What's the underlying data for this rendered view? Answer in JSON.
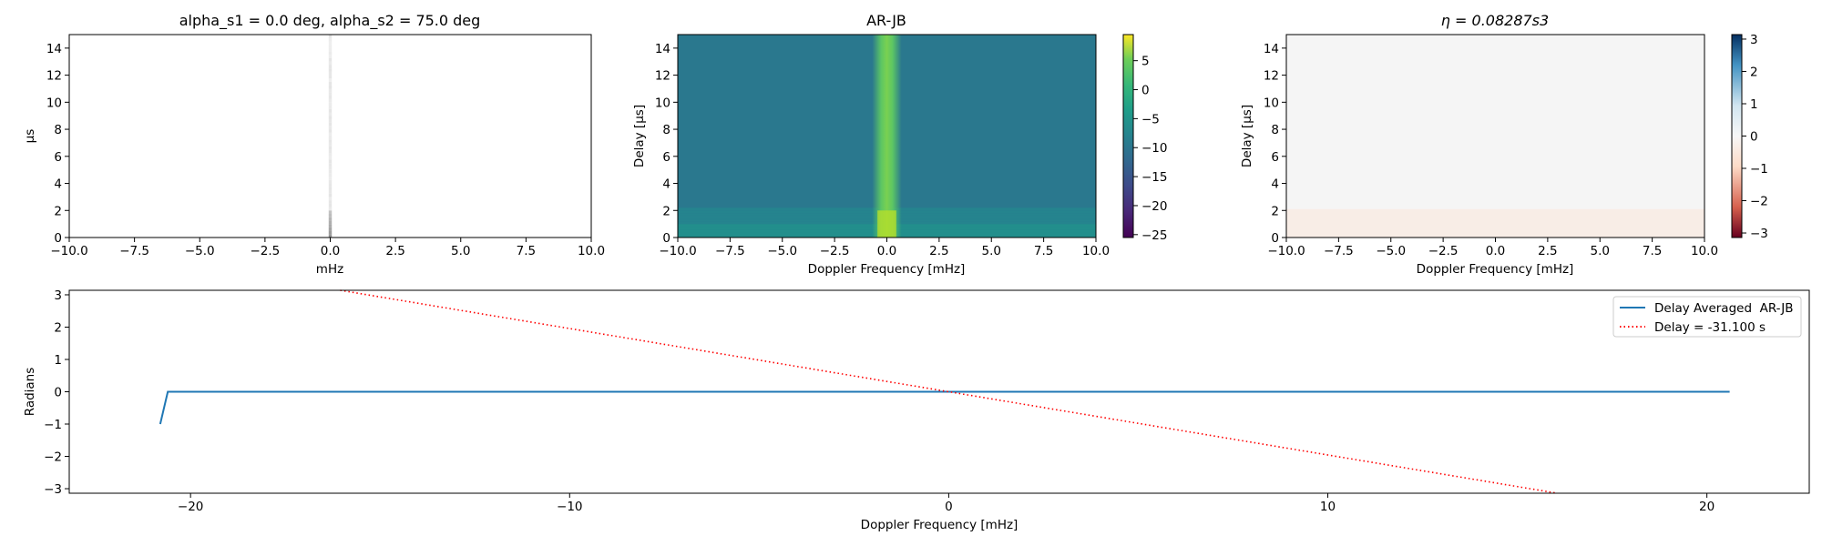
{
  "chart_data": [
    {
      "type": "heatmap",
      "title": "alpha_s1 = 0.0 deg, alpha_s2 = 75.0 deg",
      "xlabel": "mHz",
      "ylabel": "μs",
      "xlim": [
        -10,
        10
      ],
      "ylim": [
        0,
        15
      ],
      "xticks": [
        -10.0,
        -7.5,
        -5.0,
        -2.5,
        0.0,
        2.5,
        5.0,
        7.5,
        10.0
      ],
      "xtick_labels": [
        "−10.0",
        "−7.5",
        "−5.0",
        "−2.5",
        "0.0",
        "2.5",
        "5.0",
        "7.5",
        "10.0"
      ],
      "yticks": [
        0,
        2,
        4,
        6,
        8,
        10,
        12,
        14
      ],
      "ytick_labels": [
        "0",
        "2",
        "4",
        "6",
        "8",
        "10",
        "12",
        "14"
      ],
      "colormap": "greys",
      "description_values": {
        "column_x": 0.0,
        "strong_rows_delay_max": 2.0
      }
    },
    {
      "type": "heatmap",
      "title": "AR-JB",
      "xlabel": "Doppler Frequency [mHz]",
      "ylabel": "Delay [μs]",
      "xlim": [
        -10,
        10
      ],
      "ylim": [
        0,
        15
      ],
      "xticks": [
        -10.0,
        -7.5,
        -5.0,
        -2.5,
        0.0,
        2.5,
        5.0,
        7.5,
        10.0
      ],
      "xtick_labels": [
        "−10.0",
        "−7.5",
        "−5.0",
        "−2.5",
        "0.0",
        "2.5",
        "5.0",
        "7.5",
        "10.0"
      ],
      "yticks": [
        0,
        2,
        4,
        6,
        8,
        10,
        12,
        14
      ],
      "ytick_labels": [
        "0",
        "2",
        "4",
        "6",
        "8",
        "10",
        "12",
        "14"
      ],
      "colormap": "viridis",
      "colorbar": {
        "range": [
          -25.5,
          9.5
        ],
        "ticks": [
          5,
          0,
          -5,
          -10,
          -15,
          -20,
          -25
        ],
        "tick_labels": [
          "5",
          "0",
          "−5",
          "−10",
          "−15",
          "−20",
          "−25"
        ]
      },
      "background_value": -9,
      "column_value": 1,
      "low_delay_value": -6
    },
    {
      "type": "heatmap",
      "title": "η = 0.08287s3",
      "xlabel": "Doppler Frequency [mHz]",
      "ylabel": "Delay [μs]",
      "xlim": [
        -10,
        10
      ],
      "ylim": [
        0,
        15
      ],
      "xticks": [
        -10.0,
        -7.5,
        -5.0,
        -2.5,
        0.0,
        2.5,
        5.0,
        7.5,
        10.0
      ],
      "xtick_labels": [
        "−10.0",
        "−7.5",
        "−5.0",
        "−2.5",
        "0.0",
        "2.5",
        "5.0",
        "7.5",
        "10.0"
      ],
      "yticks": [
        0,
        2,
        4,
        6,
        8,
        10,
        12,
        14
      ],
      "ytick_labels": [
        "0",
        "2",
        "4",
        "6",
        "8",
        "10",
        "12",
        "14"
      ],
      "colormap": "RdBu",
      "colorbar": {
        "range": [
          -3.14,
          3.14
        ],
        "ticks": [
          3,
          2,
          1,
          0,
          -1,
          -2,
          -3
        ],
        "tick_labels": [
          "3",
          "2",
          "1",
          "0",
          "−1",
          "−2",
          "−3"
        ]
      },
      "value": 0
    },
    {
      "type": "line",
      "xlabel": "Doppler Frequency [mHz]",
      "ylabel": "Radians",
      "xlim": [
        -23.2,
        22.7
      ],
      "ylim": [
        -3.14,
        3.14
      ],
      "xticks": [
        -20,
        -10,
        0,
        10,
        20
      ],
      "xtick_labels": [
        "−20",
        "−10",
        "0",
        "10",
        "20"
      ],
      "yticks": [
        3,
        2,
        1,
        0,
        -1,
        -2,
        -3
      ],
      "ytick_labels": [
        "3",
        "2",
        "1",
        "0",
        "−1",
        "−2",
        "−3"
      ],
      "legend_position": "top-right",
      "series": [
        {
          "name": "Delay Averaged  AR-JB",
          "color": "#1f77b4",
          "style": "solid",
          "x": [
            -20.8,
            -20.6,
            20.6
          ],
          "y": [
            -1.0,
            0.0,
            0.0
          ]
        },
        {
          "name": "Delay = -31.100 s",
          "color": "#ff0000",
          "style": "dotted",
          "x": [
            -16.05,
            16.05
          ],
          "y": [
            3.14,
            -3.14
          ]
        }
      ]
    }
  ]
}
